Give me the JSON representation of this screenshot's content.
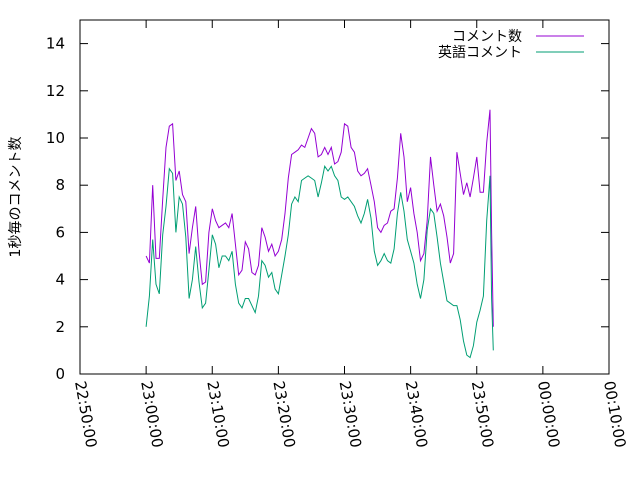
{
  "chart_data": {
    "type": "line",
    "title": "",
    "xlabel": "",
    "ylabel": "1秒毎のコメント数",
    "x_ticks": [
      "22:50:00",
      "23:00:00",
      "23:10:00",
      "23:20:00",
      "23:30:00",
      "23:40:00",
      "23:50:00",
      "00:00:00",
      "00:10:00"
    ],
    "xlim": [
      "22:50:00",
      "00:10:00"
    ],
    "y_ticks": [
      "0",
      "2",
      "4",
      "6",
      "8",
      "10",
      "12",
      "14"
    ],
    "ylim": [
      0,
      15
    ],
    "grid": false,
    "legend_position": "top-right",
    "series": [
      {
        "name": "コメント数",
        "color": "#9400d3",
        "points": [
          [
            "23:00:00",
            5.0
          ],
          [
            "23:00:30",
            4.7
          ],
          [
            "23:01:00",
            8.0
          ],
          [
            "23:01:30",
            4.9
          ],
          [
            "23:02:00",
            4.9
          ],
          [
            "23:02:30",
            7.4
          ],
          [
            "23:03:00",
            9.6
          ],
          [
            "23:03:30",
            10.5
          ],
          [
            "23:04:00",
            10.6
          ],
          [
            "23:04:30",
            8.2
          ],
          [
            "23:05:00",
            8.6
          ],
          [
            "23:05:30",
            7.6
          ],
          [
            "23:06:00",
            7.3
          ],
          [
            "23:06:30",
            5.1
          ],
          [
            "23:07:00",
            6.2
          ],
          [
            "23:07:30",
            7.1
          ],
          [
            "23:08:00",
            5.2
          ],
          [
            "23:08:30",
            3.8
          ],
          [
            "23:09:00",
            3.9
          ],
          [
            "23:09:30",
            6.0
          ],
          [
            "23:10:00",
            7.0
          ],
          [
            "23:10:30",
            6.5
          ],
          [
            "23:11:00",
            6.2
          ],
          [
            "23:11:30",
            6.3
          ],
          [
            "23:12:00",
            6.4
          ],
          [
            "23:12:30",
            6.2
          ],
          [
            "23:13:00",
            6.8
          ],
          [
            "23:13:30",
            5.5
          ],
          [
            "23:14:00",
            4.2
          ],
          [
            "23:14:30",
            4.4
          ],
          [
            "23:15:00",
            5.6
          ],
          [
            "23:15:30",
            5.3
          ],
          [
            "23:16:00",
            4.3
          ],
          [
            "23:16:30",
            4.2
          ],
          [
            "23:17:00",
            4.6
          ],
          [
            "23:17:30",
            6.2
          ],
          [
            "23:18:00",
            5.8
          ],
          [
            "23:18:30",
            5.2
          ],
          [
            "23:19:00",
            5.5
          ],
          [
            "23:19:30",
            5.0
          ],
          [
            "23:20:00",
            5.2
          ],
          [
            "23:20:30",
            5.7
          ],
          [
            "23:21:00",
            6.8
          ],
          [
            "23:21:30",
            8.3
          ],
          [
            "23:22:00",
            9.3
          ],
          [
            "23:22:30",
            9.4
          ],
          [
            "23:23:00",
            9.5
          ],
          [
            "23:23:30",
            9.7
          ],
          [
            "23:24:00",
            9.6
          ],
          [
            "23:24:30",
            10.0
          ],
          [
            "23:25:00",
            10.4
          ],
          [
            "23:25:30",
            10.2
          ],
          [
            "23:26:00",
            9.2
          ],
          [
            "23:26:30",
            9.3
          ],
          [
            "23:27:00",
            9.6
          ],
          [
            "23:27:30",
            9.3
          ],
          [
            "23:28:00",
            9.6
          ],
          [
            "23:28:30",
            8.9
          ],
          [
            "23:29:00",
            9.0
          ],
          [
            "23:29:30",
            9.4
          ],
          [
            "23:30:00",
            10.6
          ],
          [
            "23:30:30",
            10.5
          ],
          [
            "23:31:00",
            9.6
          ],
          [
            "23:31:30",
            9.4
          ],
          [
            "23:32:00",
            8.6
          ],
          [
            "23:32:30",
            8.4
          ],
          [
            "23:33:00",
            8.5
          ],
          [
            "23:33:30",
            8.7
          ],
          [
            "23:34:00",
            8.0
          ],
          [
            "23:34:30",
            7.3
          ],
          [
            "23:35:00",
            6.2
          ],
          [
            "23:35:30",
            6.0
          ],
          [
            "23:36:00",
            6.3
          ],
          [
            "23:36:30",
            6.4
          ],
          [
            "23:37:00",
            6.9
          ],
          [
            "23:37:30",
            7.0
          ],
          [
            "23:38:00",
            8.3
          ],
          [
            "23:38:30",
            10.2
          ],
          [
            "23:39:00",
            9.2
          ],
          [
            "23:39:30",
            7.3
          ],
          [
            "23:40:00",
            7.9
          ],
          [
            "23:40:30",
            6.8
          ],
          [
            "23:41:00",
            6.0
          ],
          [
            "23:41:30",
            4.8
          ],
          [
            "23:42:00",
            5.1
          ],
          [
            "23:42:30",
            6.5
          ],
          [
            "23:43:00",
            9.2
          ],
          [
            "23:43:30",
            8.0
          ],
          [
            "23:44:00",
            6.9
          ],
          [
            "23:44:30",
            7.2
          ],
          [
            "23:45:00",
            6.7
          ],
          [
            "23:45:30",
            5.8
          ],
          [
            "23:46:00",
            4.7
          ],
          [
            "23:46:30",
            5.1
          ],
          [
            "23:47:00",
            9.4
          ],
          [
            "23:47:30",
            8.5
          ],
          [
            "23:48:00",
            7.6
          ],
          [
            "23:48:30",
            8.1
          ],
          [
            "23:49:00",
            7.5
          ],
          [
            "23:49:30",
            8.3
          ],
          [
            "23:50:00",
            9.2
          ],
          [
            "23:50:30",
            7.7
          ],
          [
            "23:51:00",
            7.7
          ],
          [
            "23:51:30",
            9.8
          ],
          [
            "23:52:00",
            11.2
          ],
          [
            "23:52:15",
            6.0
          ],
          [
            "23:52:30",
            2.0
          ]
        ]
      },
      {
        "name": "英語コメント",
        "color": "#009e73",
        "points": [
          [
            "23:00:00",
            2.0
          ],
          [
            "23:00:30",
            3.3
          ],
          [
            "23:01:00",
            5.7
          ],
          [
            "23:01:30",
            3.8
          ],
          [
            "23:02:00",
            3.4
          ],
          [
            "23:02:30",
            5.9
          ],
          [
            "23:03:00",
            7.1
          ],
          [
            "23:03:30",
            8.7
          ],
          [
            "23:04:00",
            8.5
          ],
          [
            "23:04:30",
            6.0
          ],
          [
            "23:05:00",
            7.5
          ],
          [
            "23:05:30",
            7.2
          ],
          [
            "23:06:00",
            5.8
          ],
          [
            "23:06:30",
            3.2
          ],
          [
            "23:07:00",
            4.0
          ],
          [
            "23:07:30",
            5.4
          ],
          [
            "23:08:00",
            3.9
          ],
          [
            "23:08:30",
            2.8
          ],
          [
            "23:09:00",
            3.0
          ],
          [
            "23:09:30",
            4.4
          ],
          [
            "23:10:00",
            5.9
          ],
          [
            "23:10:30",
            5.5
          ],
          [
            "23:11:00",
            4.5
          ],
          [
            "23:11:30",
            5.0
          ],
          [
            "23:12:00",
            5.0
          ],
          [
            "23:12:30",
            4.8
          ],
          [
            "23:13:00",
            5.2
          ],
          [
            "23:13:30",
            3.8
          ],
          [
            "23:14:00",
            3.0
          ],
          [
            "23:14:30",
            2.8
          ],
          [
            "23:15:00",
            3.2
          ],
          [
            "23:15:30",
            3.2
          ],
          [
            "23:16:00",
            2.9
          ],
          [
            "23:16:30",
            2.6
          ],
          [
            "23:17:00",
            3.3
          ],
          [
            "23:17:30",
            4.8
          ],
          [
            "23:18:00",
            4.6
          ],
          [
            "23:18:30",
            4.1
          ],
          [
            "23:19:00",
            4.3
          ],
          [
            "23:19:30",
            3.6
          ],
          [
            "23:20:00",
            3.4
          ],
          [
            "23:20:30",
            4.2
          ],
          [
            "23:21:00",
            5.0
          ],
          [
            "23:21:30",
            5.9
          ],
          [
            "23:22:00",
            7.2
          ],
          [
            "23:22:30",
            7.5
          ],
          [
            "23:23:00",
            7.3
          ],
          [
            "23:23:30",
            8.2
          ],
          [
            "23:24:00",
            8.3
          ],
          [
            "23:24:30",
            8.4
          ],
          [
            "23:25:00",
            8.3
          ],
          [
            "23:25:30",
            8.2
          ],
          [
            "23:26:00",
            7.5
          ],
          [
            "23:26:30",
            8.1
          ],
          [
            "23:27:00",
            8.8
          ],
          [
            "23:27:30",
            8.6
          ],
          [
            "23:28:00",
            8.8
          ],
          [
            "23:28:30",
            8.4
          ],
          [
            "23:29:00",
            8.2
          ],
          [
            "23:29:30",
            7.5
          ],
          [
            "23:30:00",
            7.4
          ],
          [
            "23:30:30",
            7.5
          ],
          [
            "23:31:00",
            7.3
          ],
          [
            "23:31:30",
            7.1
          ],
          [
            "23:32:00",
            6.7
          ],
          [
            "23:32:30",
            6.4
          ],
          [
            "23:33:00",
            6.8
          ],
          [
            "23:33:30",
            7.4
          ],
          [
            "23:34:00",
            6.6
          ],
          [
            "23:34:30",
            5.2
          ],
          [
            "23:35:00",
            4.6
          ],
          [
            "23:35:30",
            4.8
          ],
          [
            "23:36:00",
            5.1
          ],
          [
            "23:36:30",
            4.8
          ],
          [
            "23:37:00",
            4.7
          ],
          [
            "23:37:30",
            5.3
          ],
          [
            "23:38:00",
            6.8
          ],
          [
            "23:38:30",
            7.7
          ],
          [
            "23:39:00",
            6.9
          ],
          [
            "23:39:30",
            5.7
          ],
          [
            "23:40:00",
            5.2
          ],
          [
            "23:40:30",
            4.7
          ],
          [
            "23:41:00",
            3.8
          ],
          [
            "23:41:30",
            3.2
          ],
          [
            "23:42:00",
            4.0
          ],
          [
            "23:42:30",
            6.1
          ],
          [
            "23:43:00",
            7.0
          ],
          [
            "23:43:30",
            6.8
          ],
          [
            "23:44:00",
            5.8
          ],
          [
            "23:44:30",
            4.7
          ],
          [
            "23:45:00",
            3.9
          ],
          [
            "23:45:30",
            3.1
          ],
          [
            "23:46:00",
            3.0
          ],
          [
            "23:46:30",
            2.9
          ],
          [
            "23:47:00",
            2.9
          ],
          [
            "23:47:30",
            2.3
          ],
          [
            "23:48:00",
            1.4
          ],
          [
            "23:48:30",
            0.8
          ],
          [
            "23:49:00",
            0.7
          ],
          [
            "23:49:30",
            1.2
          ],
          [
            "23:50:00",
            2.2
          ],
          [
            "23:50:30",
            2.7
          ],
          [
            "23:51:00",
            3.3
          ],
          [
            "23:51:30",
            6.5
          ],
          [
            "23:52:00",
            8.4
          ],
          [
            "23:52:15",
            3.2
          ],
          [
            "23:52:30",
            1.0
          ]
        ]
      }
    ]
  }
}
